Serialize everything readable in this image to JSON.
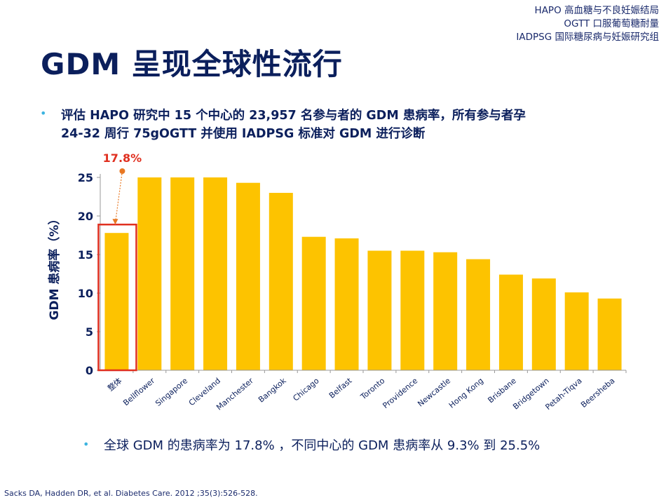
{
  "abbreviations": [
    "HAPO   高血糖与不良妊娠结局",
    "OGTT  口服葡萄糖耐量",
    "IADPSG  国际糖尿病与妊娠研究组"
  ],
  "title": "GDM 呈现全球性流行",
  "bullet_top_line1": "评估 HAPO 研究中 15 个中心的 23,957 名参与者的 GDM 患病率，所有参与者孕",
  "bullet_top_line2": "24-32 周行 75gOGTT 并使用 IADPSG 标准对 GDM 进行诊断",
  "bullet_bottom": "全球 GDM 的患病率为 17.8% ，不同中心的 GDM 患病率从 9.3% 到 25.5%",
  "citation": "Sacks DA, Hadden DR, et al. Diabetes Care. 2012 ;35(3):526-528.",
  "colors": {
    "bar": "#fdc300",
    "highlight_box": "#e03020",
    "annotation": "#e03020",
    "arrow": "#e87722",
    "text": "#0b1f5c"
  },
  "chart_data": {
    "type": "bar",
    "categories": [
      "整体",
      "Bellflower",
      "Singapore",
      "Cleveland",
      "Manchester",
      "Bangkok",
      "Chicago",
      "Belfast",
      "Toronto",
      "Providence",
      "Newcastle",
      "Hong Kong",
      "Brisbane",
      "Bridgetown",
      "Petah-Tiqva",
      "Beersheba"
    ],
    "values": [
      17.8,
      25.5,
      25.5,
      25.5,
      24.3,
      23.0,
      17.3,
      17.1,
      15.5,
      15.5,
      15.3,
      14.4,
      12.4,
      11.9,
      10.1,
      9.3
    ],
    "ylabel": "GDM 患病率（%）",
    "ylim": [
      0,
      25
    ],
    "yticks": [
      "0",
      "5",
      "10",
      "15",
      "20",
      "25"
    ],
    "annotation": "17.8%",
    "highlighted_category": "整体",
    "grid": false
  }
}
